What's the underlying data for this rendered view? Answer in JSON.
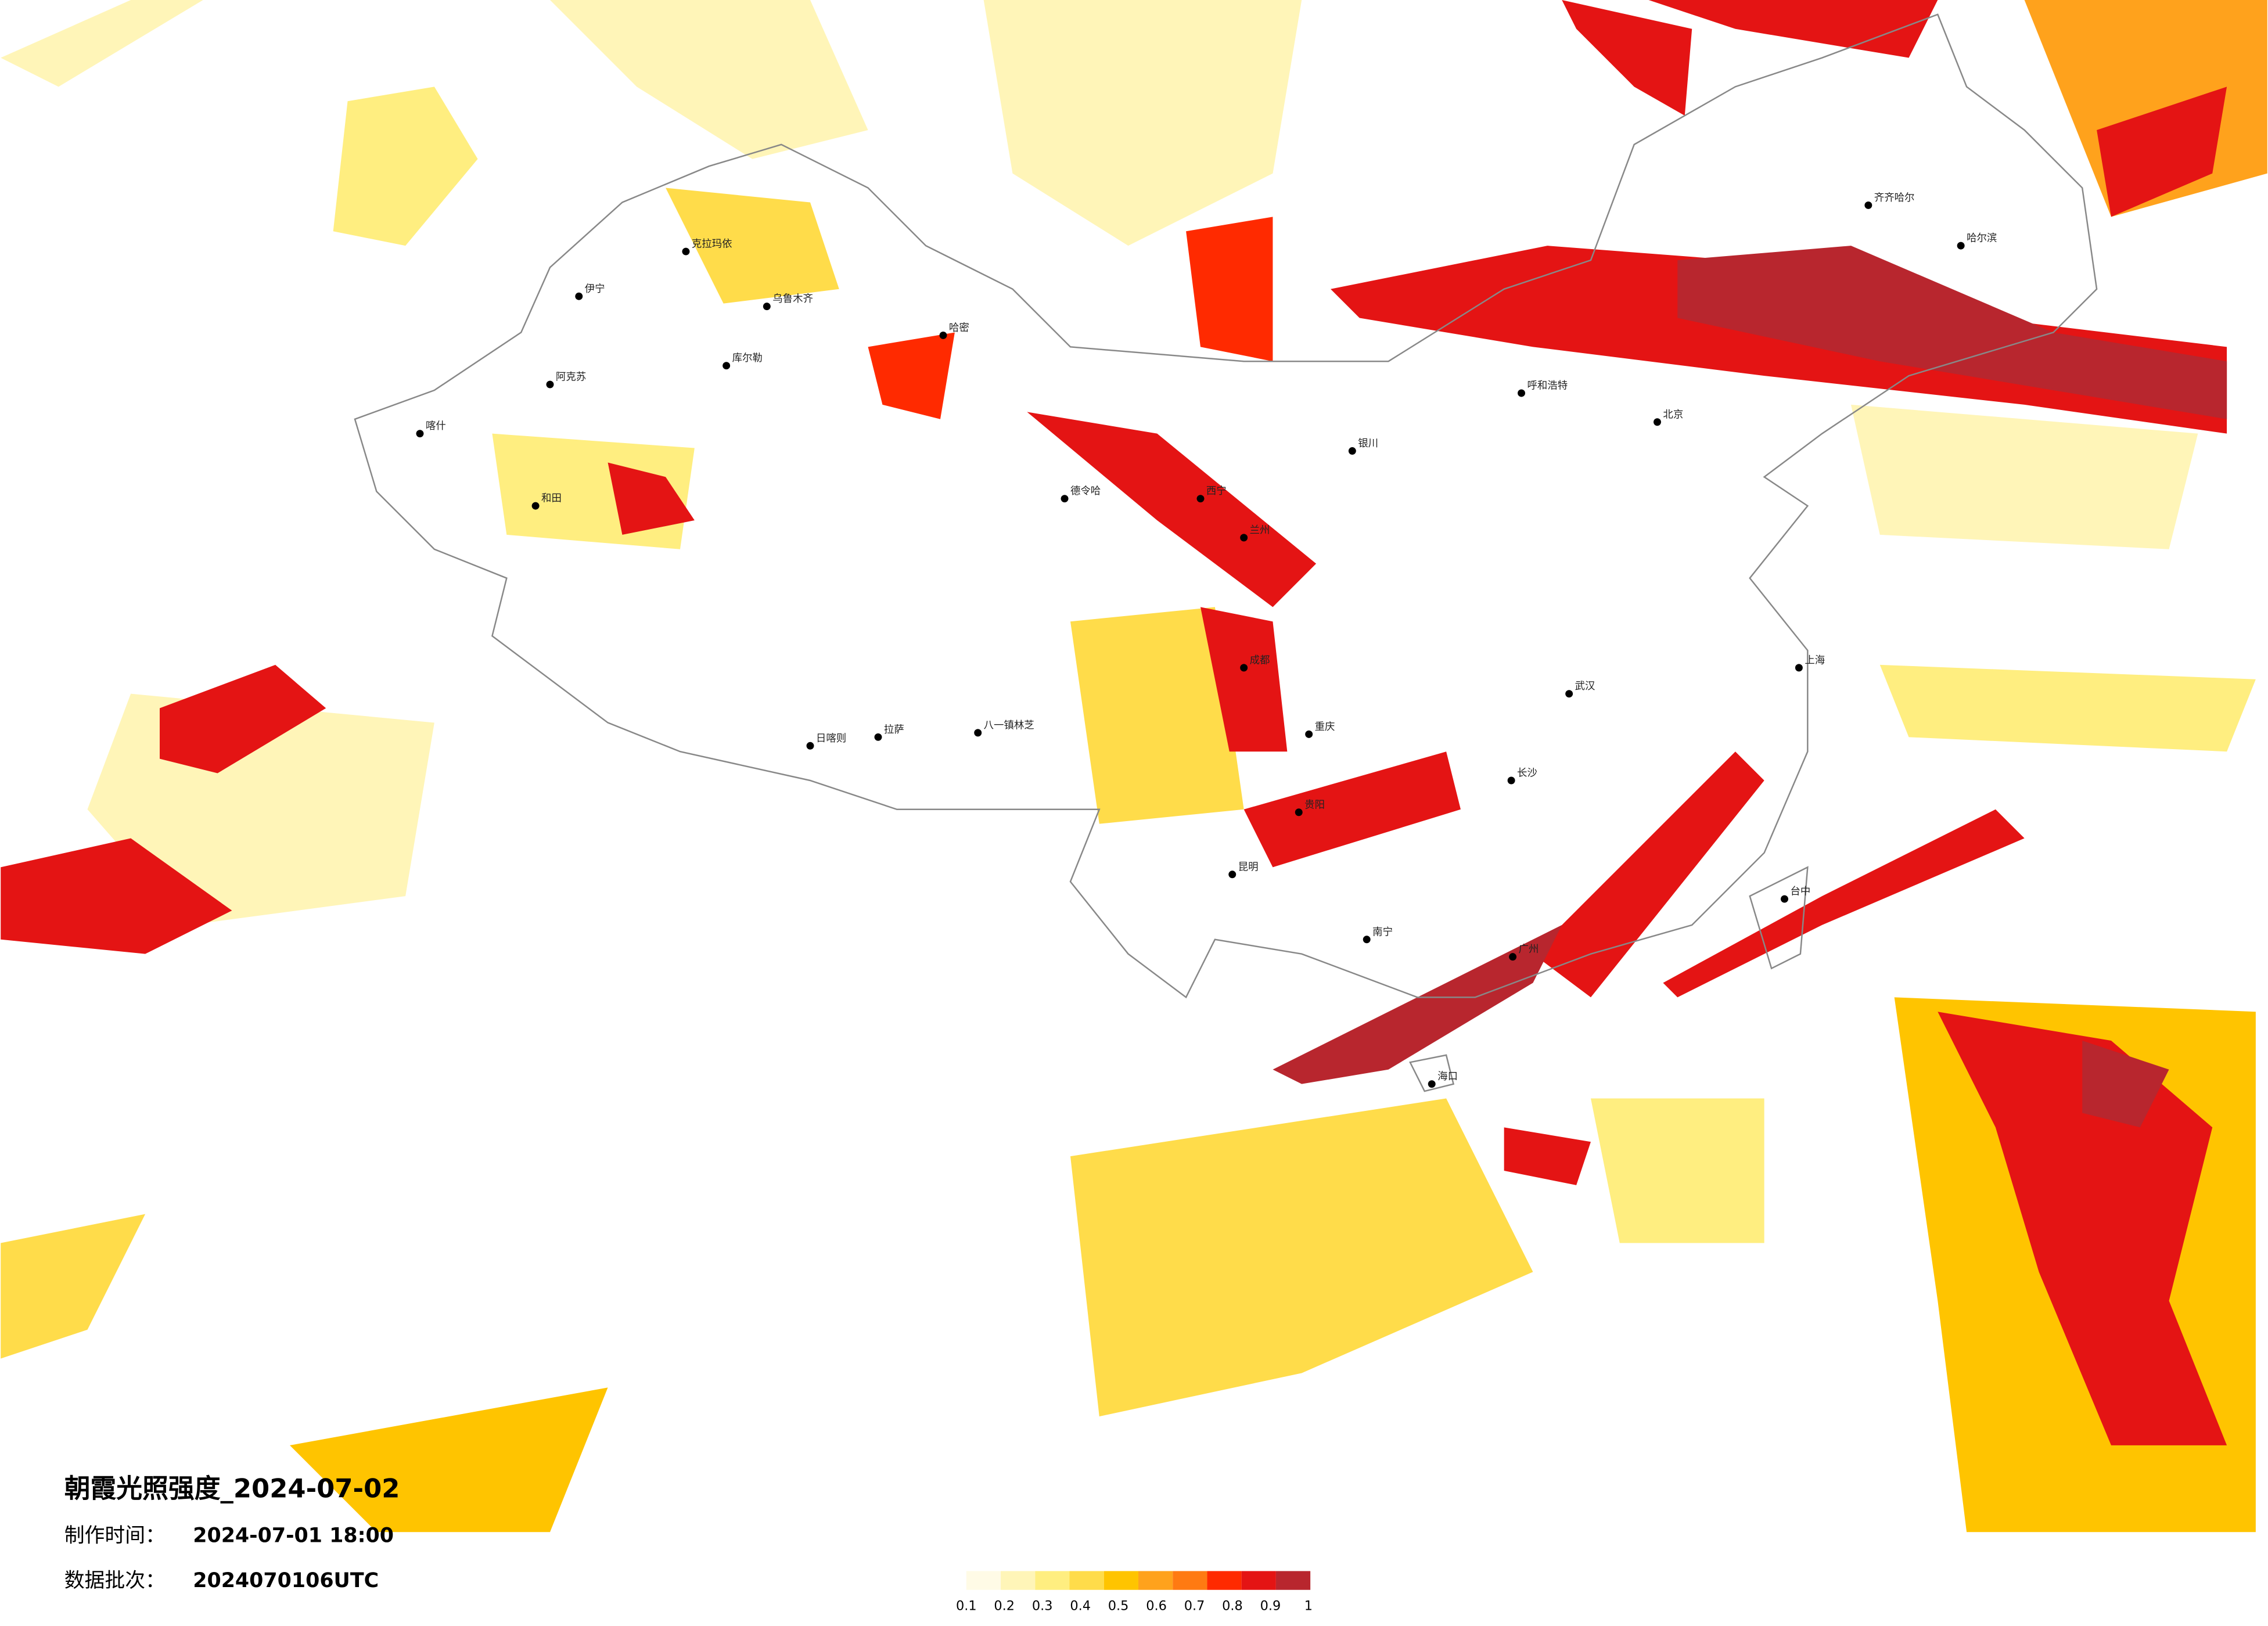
{
  "title": "朝霞光照强度_2024-07-02",
  "meta": [
    {
      "label": "制作时间：",
      "value": "2024-07-01 18:00"
    },
    {
      "label": "数据批次：",
      "value": "2024070106UTC"
    }
  ],
  "legend": {
    "colors": [
      "#fffbe6",
      "#fff5b8",
      "#ffee80",
      "#ffdc4a",
      "#ffc400",
      "#ffa21c",
      "#ff7a12",
      "#ff2a00",
      "#e41414",
      "#b8262e"
    ],
    "labels": [
      0.1,
      0.2,
      0.3,
      0.4,
      0.5,
      0.6,
      0.7,
      0.8,
      0.9,
      1
    ]
  },
  "cities": [
    "伊宁",
    "克拉玛依",
    "乌鲁木齐",
    "库尔勒",
    "阿克苏",
    "喀什",
    "和田",
    "哈密",
    "德令哈",
    "日喀则",
    "拉萨",
    "八一镇林芝",
    "西宁",
    "兰州",
    "银川",
    "呼和浩特",
    "北京",
    "成都",
    "重庆",
    "贵阳",
    "昆明",
    "南宁",
    "长沙",
    "武汉",
    "广州",
    "海口",
    "上海",
    "台中",
    "齐齐哈尔",
    "哈尔滨"
  ]
}
